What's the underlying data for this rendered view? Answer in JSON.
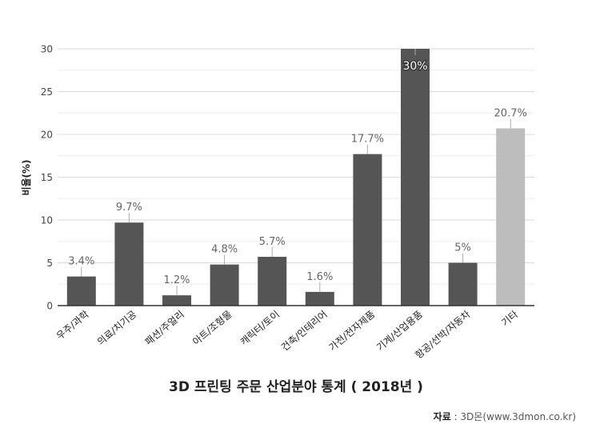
{
  "chart_data": {
    "type": "bar",
    "title": "3D 프린팅 주문 산업분야 통계 ( 2018년 )",
    "xlabel": "",
    "ylabel": "비율(%)",
    "ylim": [
      0,
      30
    ],
    "yticks": [
      0,
      5,
      10,
      15,
      20,
      25,
      30
    ],
    "grid": true,
    "categories": [
      "우주/과학",
      "의료/치기공",
      "패션/주얼리",
      "아트/조형물",
      "캐릭터/토이",
      "건축/인테리어",
      "가전/전자제품",
      "기계/산업용품",
      "항공/선박/자동차",
      "기타"
    ],
    "values": [
      3.4,
      9.7,
      1.2,
      4.8,
      5.7,
      1.6,
      17.7,
      30,
      5,
      20.7
    ],
    "data_labels": [
      "3.4%",
      "9.7%",
      "1.2%",
      "4.8%",
      "5.7%",
      "1.6%",
      "17.7%",
      "30%",
      "5%",
      "20.7%"
    ],
    "colors": {
      "bar": "#555555",
      "highlight_bar": "#bdbdbd",
      "grid": "#d9d9d9",
      "axis": "#333333",
      "label": "#666666"
    },
    "highlight_index": 9,
    "inside_label_index": 7
  },
  "source": {
    "label": "자료",
    "separator": " : ",
    "text": "3D몬(www.3dmon.co.kr)"
  }
}
